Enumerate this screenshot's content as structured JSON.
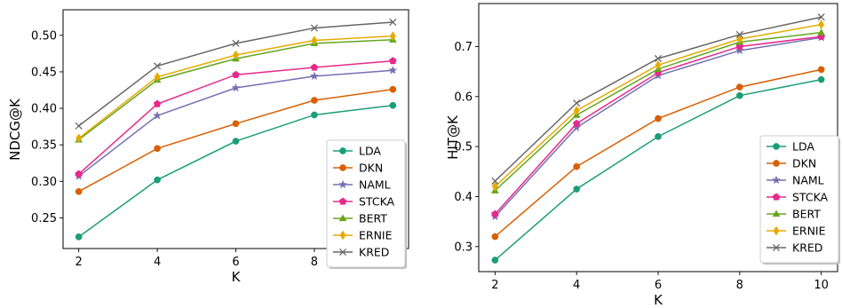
{
  "chart_data": [
    {
      "type": "line",
      "xlabel": "K",
      "ylabel": "NDCG@K",
      "x": [
        2,
        4,
        6,
        8,
        10
      ],
      "xlim": [
        1.6,
        10.4
      ],
      "ylim": [
        0.208,
        0.535
      ],
      "xticks": [
        2,
        4,
        6,
        8,
        10
      ],
      "yticks": [
        0.25,
        0.3,
        0.35,
        0.4,
        0.45,
        0.5
      ],
      "ytick_labels": [
        "0.25",
        "0.30",
        "0.35",
        "0.40",
        "0.45",
        "0.50"
      ],
      "legend_position": "lower-right",
      "series": [
        {
          "name": "LDA",
          "values": [
            0.224,
            0.302,
            0.355,
            0.391,
            0.404
          ]
        },
        {
          "name": "DKN",
          "values": [
            0.286,
            0.345,
            0.379,
            0.411,
            0.426
          ]
        },
        {
          "name": "NAML",
          "values": [
            0.307,
            0.39,
            0.428,
            0.444,
            0.452
          ]
        },
        {
          "name": "STCKA",
          "values": [
            0.31,
            0.406,
            0.446,
            0.456,
            0.465
          ]
        },
        {
          "name": "BERT",
          "values": [
            0.357,
            0.439,
            0.468,
            0.489,
            0.494
          ]
        },
        {
          "name": "ERNIE",
          "values": [
            0.359,
            0.443,
            0.473,
            0.493,
            0.499
          ]
        },
        {
          "name": "KRED",
          "values": [
            0.376,
            0.458,
            0.489,
            0.51,
            0.518
          ]
        }
      ]
    },
    {
      "type": "line",
      "xlabel": "K",
      "ylabel": "HIT@K",
      "x": [
        2,
        4,
        6,
        8,
        10
      ],
      "xlim": [
        1.6,
        10.4
      ],
      "ylim": [
        0.25,
        0.786
      ],
      "xticks": [
        2,
        4,
        6,
        8,
        10
      ],
      "yticks": [
        0.3,
        0.4,
        0.5,
        0.6,
        0.7
      ],
      "ytick_labels": [
        "0.3",
        "0.4",
        "0.5",
        "0.6",
        "0.7"
      ],
      "legend_position": "lower-right",
      "series": [
        {
          "name": "LDA",
          "values": [
            0.273,
            0.415,
            0.52,
            0.602,
            0.634
          ]
        },
        {
          "name": "DKN",
          "values": [
            0.32,
            0.46,
            0.556,
            0.619,
            0.654
          ]
        },
        {
          "name": "NAML",
          "values": [
            0.36,
            0.538,
            0.642,
            0.692,
            0.718
          ]
        },
        {
          "name": "STCKA",
          "values": [
            0.365,
            0.546,
            0.648,
            0.7,
            0.72
          ]
        },
        {
          "name": "BERT",
          "values": [
            0.412,
            0.563,
            0.655,
            0.709,
            0.728
          ]
        },
        {
          "name": "ERNIE",
          "values": [
            0.42,
            0.572,
            0.663,
            0.715,
            0.744
          ]
        },
        {
          "name": "KRED",
          "values": [
            0.431,
            0.587,
            0.676,
            0.724,
            0.759
          ]
        }
      ]
    }
  ],
  "series_colors": {
    "LDA": "#1b9e77",
    "DKN": "#d95f02",
    "NAML": "#7570b3",
    "STCKA": "#e7298a",
    "BERT": "#66a61e",
    "ERNIE": "#e6ab02",
    "KRED": "#666666"
  },
  "series_markers": {
    "LDA": "circle",
    "DKN": "circle",
    "NAML": "star",
    "STCKA": "pentagon",
    "BERT": "triangle-up",
    "ERNIE": "diamond-thin",
    "KRED": "x"
  }
}
